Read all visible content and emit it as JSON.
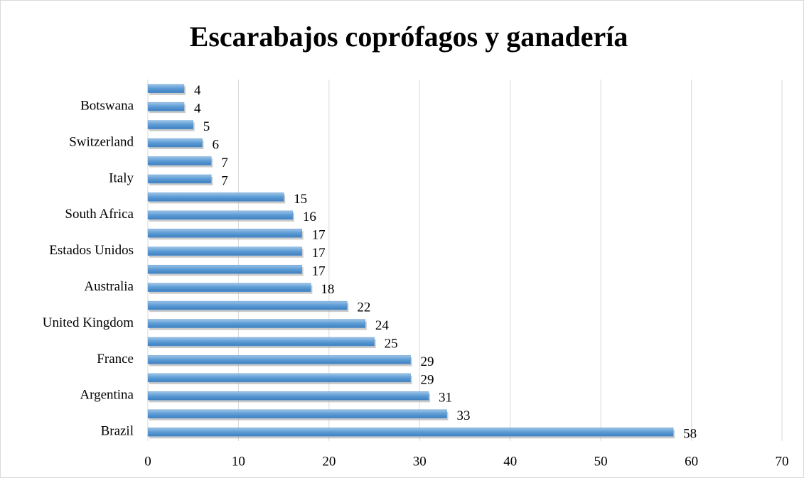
{
  "chart_data": {
    "type": "barh",
    "title": "Escarabajos coprófagos y ganadería",
    "categories": [
      "Brazil",
      null,
      "Argentina",
      null,
      "France",
      null,
      "United Kingdom",
      null,
      "Australia",
      null,
      "Estados Unidos",
      null,
      "South Africa",
      null,
      "Italy",
      null,
      "Switzerland",
      null,
      "Botswana",
      null
    ],
    "values": [
      58,
      33,
      31,
      29,
      29,
      25,
      24,
      22,
      18,
      17,
      17,
      17,
      16,
      15,
      7,
      7,
      6,
      5,
      4,
      4
    ],
    "color": "#5b9bd5",
    "xlim": [
      0,
      70
    ],
    "xticks": [
      0,
      10,
      20,
      30,
      40,
      50,
      60,
      70
    ],
    "grid": true
  }
}
